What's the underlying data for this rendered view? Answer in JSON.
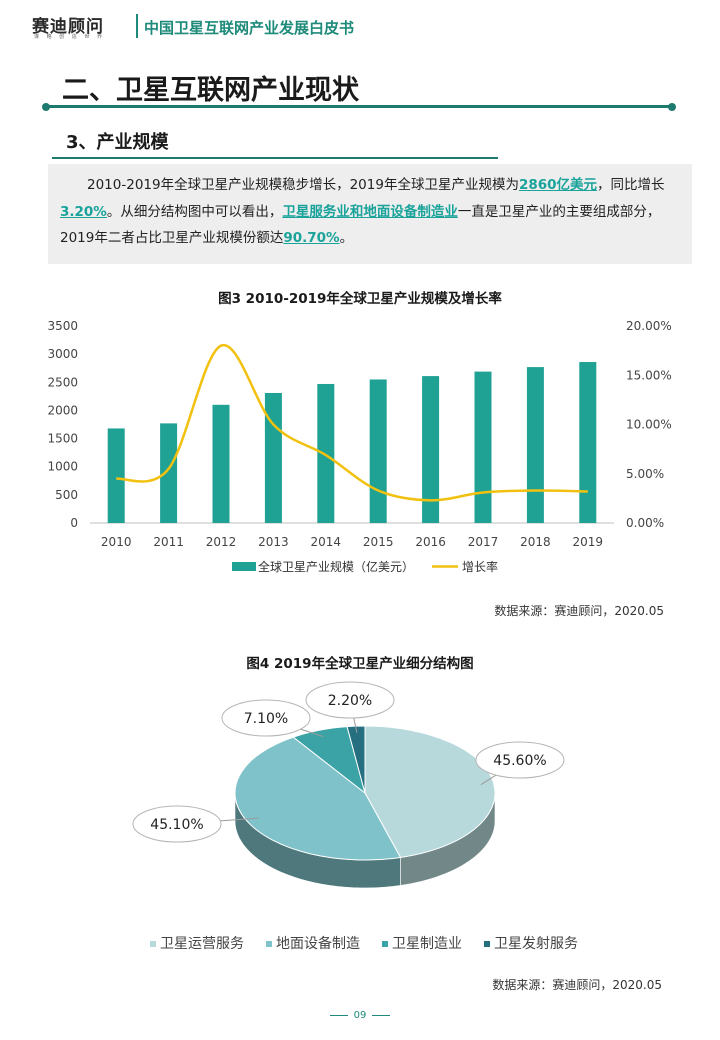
{
  "header": {
    "logo_text": "赛迪顾问",
    "logo_subtext": "谋 略 创 造 世 界",
    "doc_title": "中国卫星互联网产业发展白皮书"
  },
  "section": {
    "title": "二、卫星互联网产业现状"
  },
  "subsection": {
    "title": "3、产业规模"
  },
  "paragraph": {
    "p1": "2010-2019年全球卫星产业规模稳步增长，2019年全球卫星产业规模为",
    "h1": "2860亿美元",
    "p2": "，同比增长",
    "h2": "3.20%",
    "p3": "。从细分结构图中可以看出，",
    "h3": "卫星服务业和地面设备制造业",
    "p4": "一直是卫星产业的主要组成部分，2019年二者占比卫星产业规模份额达",
    "h4": "90.70%",
    "p5": "。"
  },
  "figure3": {
    "title": "图3  2010-2019年全球卫星产业规模及增长率",
    "source": "数据来源：赛迪顾问，2020.05"
  },
  "figure4": {
    "title": "图4  2019年全球卫星产业细分结构图",
    "source": "数据来源：赛迪顾问，2020.05"
  },
  "footer": {
    "page": "09"
  },
  "chart_data": [
    {
      "type": "bar",
      "title": "图3  2010-2019年全球卫星产业规模及增长率",
      "categories": [
        "2010",
        "2011",
        "2012",
        "2013",
        "2014",
        "2015",
        "2016",
        "2017",
        "2018",
        "2019"
      ],
      "series": [
        {
          "name": "全球卫星产业规模（亿美元）",
          "type": "bar",
          "axis": "left",
          "color": "#1fa294",
          "values": [
            1680,
            1770,
            2100,
            2310,
            2470,
            2550,
            2610,
            2690,
            2770,
            2860
          ]
        },
        {
          "name": "增长率",
          "type": "line",
          "axis": "right",
          "color": "#f2c10f",
          "values": [
            4.5,
            5.5,
            18.0,
            10.0,
            6.9,
            3.3,
            2.3,
            3.1,
            3.3,
            3.2
          ]
        }
      ],
      "y_left": {
        "ylim": [
          0,
          3500
        ],
        "ticks": [
          "0",
          "500",
          "1000",
          "1500",
          "2000",
          "2500",
          "3000",
          "3500"
        ]
      },
      "y_right": {
        "ylim": [
          0,
          20
        ],
        "ticks": [
          "0.00%",
          "5.00%",
          "10.00%",
          "15.00%",
          "20.00%"
        ]
      },
      "grid": false,
      "legend": "bottom"
    },
    {
      "type": "pie",
      "title": "图4  2019年全球卫星产业细分结构图",
      "style": "3d",
      "slices": [
        {
          "label": "卫星运营服务",
          "value": 45.6,
          "display": "45.60%",
          "color": "#b7d9dc"
        },
        {
          "label": "地面设备制造",
          "value": 45.1,
          "display": "45.10%",
          "color": "#7fc2ca"
        },
        {
          "label": "卫星制造业",
          "value": 7.1,
          "display": "7.10%",
          "color": "#3ba3a6"
        },
        {
          "label": "卫星发射服务",
          "value": 2.2,
          "display": "2.20%",
          "color": "#256f80"
        }
      ],
      "legend": "bottom"
    }
  ]
}
